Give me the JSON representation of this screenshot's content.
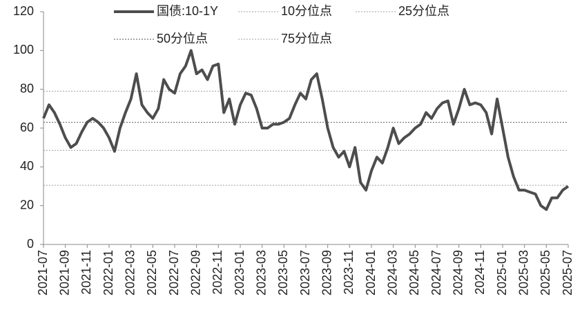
{
  "chart_data": {
    "type": "line",
    "categories": [
      "2021-07",
      null,
      null,
      null,
      "2021-09",
      null,
      null,
      null,
      "2021-11",
      null,
      null,
      null,
      "2022-01",
      null,
      null,
      null,
      "2022-03",
      null,
      null,
      null,
      "2022-05",
      null,
      null,
      null,
      "2022-07",
      null,
      null,
      null,
      "2022-09",
      null,
      null,
      null,
      "2022-11",
      null,
      null,
      null,
      "2023-01",
      null,
      null,
      null,
      "2023-03",
      null,
      null,
      null,
      "2023-05",
      null,
      null,
      null,
      "2023-07",
      null,
      null,
      null,
      "2023-09",
      null,
      null,
      null,
      "2023-11",
      null,
      null,
      null,
      "2024-01",
      null,
      null,
      null,
      "2024-03",
      null,
      null,
      null,
      "2024-05",
      null,
      null,
      null,
      "2024-07",
      null,
      null,
      null,
      "2024-09",
      null,
      null,
      null,
      "2024-11",
      null,
      null,
      null,
      "2025-01",
      null,
      null,
      null,
      "2025-03",
      null,
      null,
      null,
      "2025-05",
      null,
      null,
      null,
      "2025-07"
    ],
    "series": [
      {
        "name": "国债:10-1Y",
        "color": "#4d4d4d",
        "values": [
          65,
          72,
          68,
          62,
          55,
          50,
          52,
          58,
          63,
          65,
          63,
          60,
          55,
          48,
          60,
          68,
          75,
          88,
          72,
          68,
          65,
          70,
          85,
          80,
          78,
          88,
          92,
          100,
          88,
          90,
          85,
          92,
          93,
          68,
          75,
          62,
          72,
          78,
          77,
          70,
          60,
          60,
          62,
          62,
          63,
          65,
          72,
          78,
          75,
          85,
          88,
          75,
          60,
          50,
          45,
          48,
          40,
          50,
          32,
          28,
          38,
          45,
          42,
          50,
          60,
          52,
          55,
          57,
          60,
          62,
          68,
          65,
          70,
          73,
          74,
          62,
          70,
          80,
          72,
          73,
          72,
          68,
          57,
          75,
          60,
          45,
          35,
          28,
          28,
          27,
          26,
          20,
          18,
          24,
          24,
          28,
          30
        ]
      }
    ],
    "reference_lines": [
      {
        "name": "10分位点",
        "value": 30.5,
        "color": "#b0b0b0"
      },
      {
        "name": "25分位点",
        "value": 48.5,
        "color": "#b0b0b0"
      },
      {
        "name": "50分位点",
        "value": 63,
        "color": "#707070"
      },
      {
        "name": "75分位点",
        "value": 79,
        "color": "#b0b0b0"
      }
    ],
    "ylim": [
      0,
      120
    ],
    "yticks": [
      0,
      20,
      40,
      60,
      80,
      100,
      120
    ]
  }
}
